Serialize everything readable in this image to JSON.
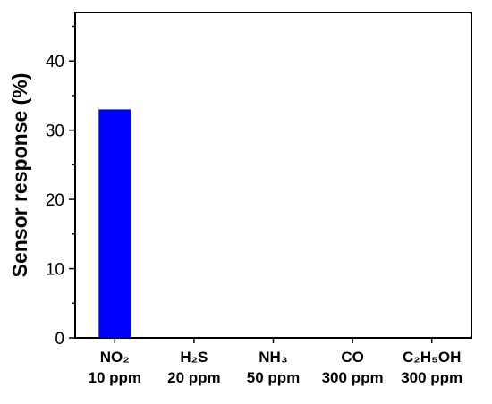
{
  "chart_data": {
    "type": "bar",
    "ylabel": "Sensor response (%)",
    "ylim": [
      0,
      47
    ],
    "yticks": [
      0,
      10,
      20,
      30,
      40
    ],
    "grid": false,
    "bar_color": "#0000ff",
    "categories": [
      {
        "gas": "NO₂",
        "conc": "10 ppm"
      },
      {
        "gas": "H₂S",
        "conc": "20 ppm"
      },
      {
        "gas": "NH₃",
        "conc": "50 ppm"
      },
      {
        "gas": "CO",
        "conc": "300 ppm"
      },
      {
        "gas": "C₂H₅OH",
        "conc": "300 ppm"
      }
    ],
    "values": [
      33,
      0,
      0,
      0,
      0
    ]
  }
}
